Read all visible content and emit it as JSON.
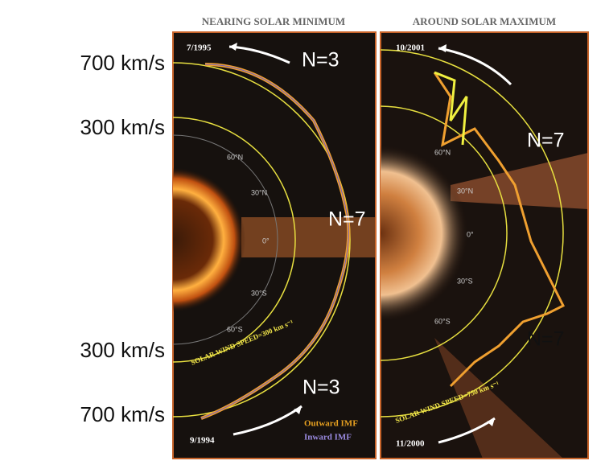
{
  "speed_labels": [
    "700 km/s",
    "300 km/s",
    "300 km/s",
    "700 km/s"
  ],
  "panels": [
    {
      "title": "NEARING SOLAR MINIMUM",
      "start_date": "9/1994",
      "end_date": "7/1995",
      "circle_label": "SOLAR WIND SPEED=300 km s⁻¹",
      "latitudes": [
        "60°N",
        "30°N",
        "0°",
        "30°S",
        "60°S"
      ],
      "legend": [
        "Outward IMF",
        "Inward IMF"
      ]
    },
    {
      "title": "AROUND SOLAR MAXIMUM",
      "start_date": "11/2000",
      "end_date": "10/2001",
      "circle_label": "SOLAR WIND SPEED=750 km s⁻¹",
      "latitudes": [
        "60°N",
        "30°N",
        "0°",
        "30°S",
        "60°S"
      ]
    }
  ],
  "annotations": [
    "N=3",
    "N=7",
    "N=3",
    "N=7",
    "N=7"
  ]
}
